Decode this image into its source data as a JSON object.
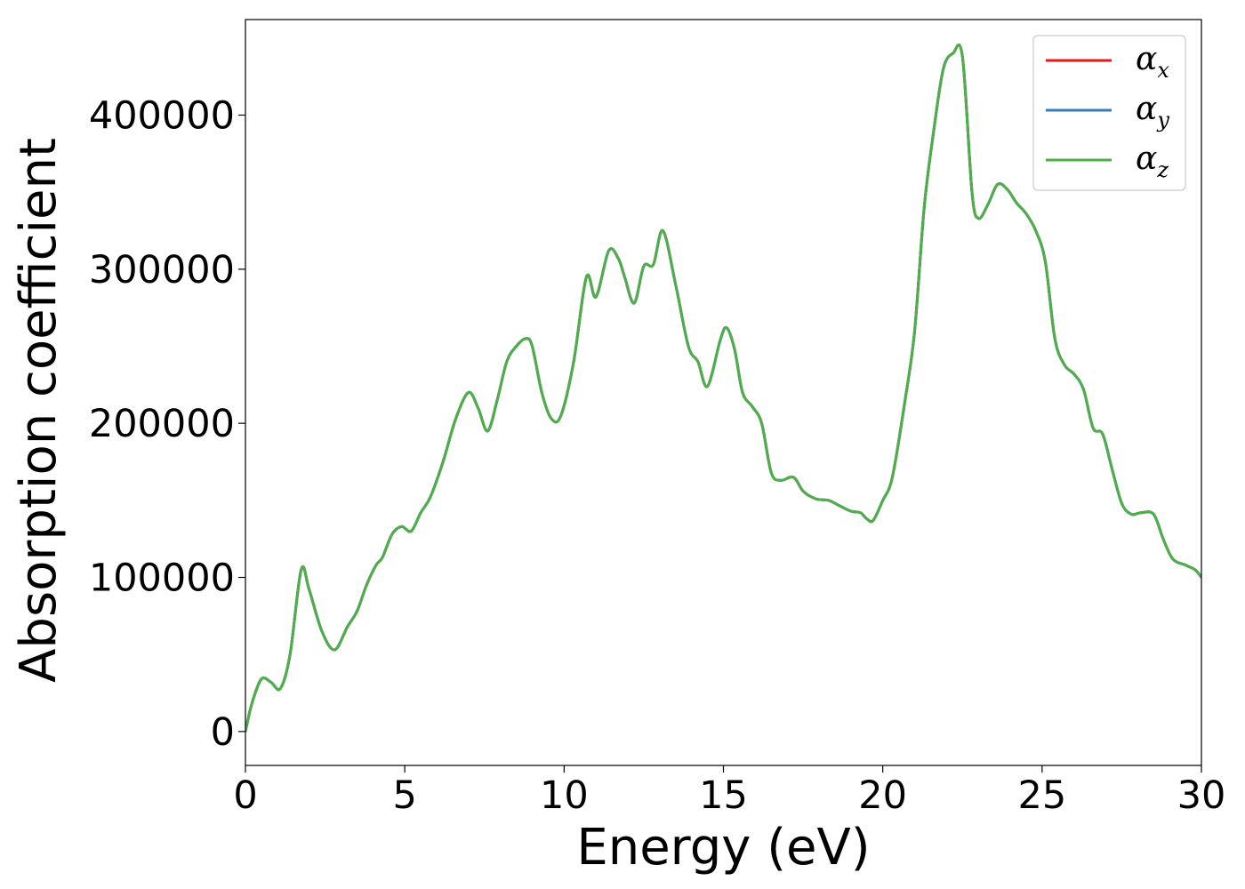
{
  "chart_data": {
    "type": "line",
    "xlabel": "Energy (eV)",
    "ylabel": "Absorption coefficient",
    "xlim": [
      0,
      30
    ],
    "ylim": [
      -22000,
      462000
    ],
    "xticks": [
      0,
      5,
      10,
      15,
      20,
      25,
      30
    ],
    "yticks": [
      0,
      100000,
      200000,
      300000,
      400000
    ],
    "grid": false,
    "legend_position": "top-right",
    "x": [
      0,
      0.2,
      0.5,
      0.8,
      1.1,
      1.4,
      1.75,
      2.0,
      2.4,
      2.8,
      3.2,
      3.5,
      3.8,
      4.1,
      4.3,
      4.6,
      4.9,
      5.2,
      5.5,
      5.8,
      6.2,
      6.6,
      7.0,
      7.3,
      7.6,
      7.9,
      8.2,
      8.5,
      8.8,
      9.0,
      9.3,
      9.6,
      9.9,
      10.3,
      10.7,
      11.0,
      11.4,
      11.7,
      11.9,
      12.2,
      12.5,
      12.8,
      13.1,
      13.5,
      13.9,
      14.2,
      14.5,
      14.9,
      15.1,
      15.35,
      15.6,
      15.9,
      16.2,
      16.5,
      16.8,
      17.2,
      17.5,
      17.9,
      18.3,
      18.6,
      19.0,
      19.3,
      19.5,
      19.7,
      20.0,
      20.3,
      20.7,
      21.0,
      21.3,
      21.6,
      21.9,
      22.2,
      22.5,
      22.8,
      23.0,
      23.3,
      23.6,
      23.9,
      24.2,
      24.5,
      24.8,
      25.1,
      25.4,
      25.7,
      26.0,
      26.3,
      26.6,
      26.9,
      27.2,
      27.5,
      27.8,
      28.1,
      28.5,
      28.8,
      29.1,
      29.5,
      29.8,
      30.0
    ],
    "series": [
      {
        "name": "α_x",
        "color": "#e41a1c",
        "values": [
          0,
          18000,
          34000,
          32000,
          28000,
          50000,
          105000,
          92000,
          65000,
          53000,
          68000,
          78000,
          95000,
          108000,
          113000,
          128000,
          133000,
          130000,
          142000,
          152000,
          175000,
          203000,
          220000,
          210000,
          195000,
          215000,
          240000,
          250000,
          255000,
          250000,
          220000,
          203000,
          205000,
          240000,
          295000,
          282000,
          312000,
          307000,
          295000,
          278000,
          302000,
          303000,
          325000,
          290000,
          250000,
          240000,
          224000,
          254000,
          262000,
          248000,
          220000,
          211000,
          200000,
          168000,
          163000,
          165000,
          156000,
          151000,
          150000,
          147000,
          143000,
          142000,
          138000,
          137000,
          150000,
          165000,
          215000,
          260000,
          340000,
          390000,
          430000,
          440000,
          438000,
          350000,
          333000,
          342000,
          355000,
          352000,
          343000,
          336000,
          325000,
          305000,
          255000,
          238000,
          232000,
          222000,
          197000,
          193000,
          170000,
          148000,
          141000,
          142000,
          141000,
          125000,
          112000,
          108000,
          105000,
          100000
        ]
      },
      {
        "name": "α_y",
        "color": "#377eb8",
        "values": [
          0,
          18000,
          34000,
          32000,
          28000,
          50000,
          105000,
          92000,
          65000,
          53000,
          68000,
          78000,
          95000,
          108000,
          113000,
          128000,
          133000,
          130000,
          142000,
          152000,
          175000,
          203000,
          220000,
          210000,
          195000,
          215000,
          240000,
          250000,
          255000,
          250000,
          220000,
          203000,
          205000,
          240000,
          295000,
          282000,
          312000,
          307000,
          295000,
          278000,
          302000,
          303000,
          325000,
          290000,
          250000,
          240000,
          224000,
          254000,
          262000,
          248000,
          220000,
          211000,
          200000,
          168000,
          163000,
          165000,
          156000,
          151000,
          150000,
          147000,
          143000,
          142000,
          138000,
          137000,
          150000,
          165000,
          215000,
          260000,
          340000,
          390000,
          430000,
          440000,
          438000,
          350000,
          333000,
          342000,
          355000,
          352000,
          343000,
          336000,
          325000,
          305000,
          255000,
          238000,
          232000,
          222000,
          197000,
          193000,
          170000,
          148000,
          141000,
          142000,
          141000,
          125000,
          112000,
          108000,
          105000,
          100000
        ]
      },
      {
        "name": "α_z",
        "color": "#4daf4a",
        "values": [
          0,
          18000,
          34000,
          32000,
          28000,
          50000,
          105000,
          92000,
          65000,
          53000,
          68000,
          78000,
          95000,
          108000,
          113000,
          128000,
          133000,
          130000,
          142000,
          152000,
          175000,
          203000,
          220000,
          210000,
          195000,
          215000,
          240000,
          250000,
          255000,
          250000,
          220000,
          203000,
          205000,
          240000,
          295000,
          282000,
          312000,
          307000,
          295000,
          278000,
          302000,
          303000,
          325000,
          290000,
          250000,
          240000,
          224000,
          254000,
          262000,
          248000,
          220000,
          211000,
          200000,
          168000,
          163000,
          165000,
          156000,
          151000,
          150000,
          147000,
          143000,
          142000,
          138000,
          137000,
          150000,
          165000,
          215000,
          260000,
          340000,
          390000,
          430000,
          440000,
          438000,
          350000,
          333000,
          342000,
          355000,
          352000,
          343000,
          336000,
          325000,
          305000,
          255000,
          238000,
          232000,
          222000,
          197000,
          193000,
          170000,
          148000,
          141000,
          142000,
          141000,
          125000,
          112000,
          108000,
          105000,
          100000
        ]
      }
    ]
  }
}
